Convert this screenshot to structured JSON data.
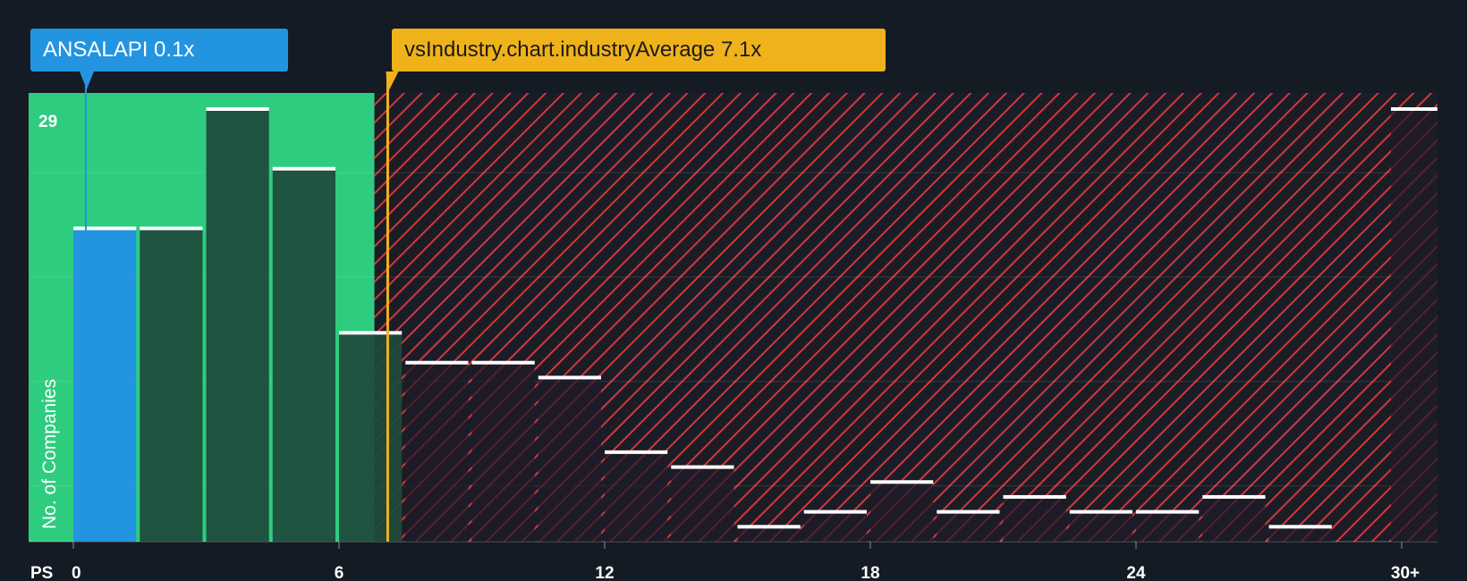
{
  "colors": {
    "background": "#151b24",
    "fair_zone": "#2ecc7f",
    "fair_bar": "#1e4a3b",
    "company_bar": "#2394e0",
    "expensive_hatch": "#d4363e",
    "expensive_bar": "#2b252f",
    "industry_marker": "#f0b21b",
    "bar_cap": "#ffffff",
    "axis_text": "#ffffff"
  },
  "company_label": {
    "ticker": "ANSALAPI",
    "value": "0.1x",
    "text": "ANSALAPI 0.1x"
  },
  "industry_label": {
    "text": "vsIndustry.chart.industryAverage 7.1x",
    "value": "7.1x"
  },
  "chart_data": {
    "type": "bar",
    "title": "",
    "xlabel": "PS",
    "ylabel": "No. of Companies",
    "xlim": [
      0,
      30
    ],
    "ylim": [
      0,
      30
    ],
    "bin_width": 1.5,
    "x_ticks": [
      {
        "value": 0,
        "label": "0"
      },
      {
        "value": 6,
        "label": "6"
      },
      {
        "value": 12,
        "label": "12"
      },
      {
        "value": 18,
        "label": "18"
      },
      {
        "value": 24,
        "label": "24"
      },
      {
        "value": 30,
        "label": "30+"
      }
    ],
    "y_ticks": [
      {
        "value": 29,
        "label": "29"
      }
    ],
    "company_value": 0.1,
    "industry_average": 7.1,
    "fair_zone_end": 6.8,
    "bins": [
      {
        "x": 0.0,
        "value": 21,
        "zone": "company"
      },
      {
        "x": 1.5,
        "value": 21,
        "zone": "fair"
      },
      {
        "x": 3.0,
        "value": 29,
        "zone": "fair"
      },
      {
        "x": 4.5,
        "value": 25,
        "zone": "fair"
      },
      {
        "x": 6.0,
        "value": 14,
        "zone": "fair"
      },
      {
        "x": 7.5,
        "value": 12,
        "zone": "expensive"
      },
      {
        "x": 9.0,
        "value": 12,
        "zone": "expensive"
      },
      {
        "x": 10.5,
        "value": 11,
        "zone": "expensive"
      },
      {
        "x": 12.0,
        "value": 6,
        "zone": "expensive"
      },
      {
        "x": 13.5,
        "value": 5,
        "zone": "expensive"
      },
      {
        "x": 15.0,
        "value": 1,
        "zone": "expensive"
      },
      {
        "x": 16.5,
        "value": 2,
        "zone": "expensive"
      },
      {
        "x": 18.0,
        "value": 4,
        "zone": "expensive"
      },
      {
        "x": 19.5,
        "value": 2,
        "zone": "expensive"
      },
      {
        "x": 21.0,
        "value": 3,
        "zone": "expensive"
      },
      {
        "x": 22.5,
        "value": 2,
        "zone": "expensive"
      },
      {
        "x": 24.0,
        "value": 2,
        "zone": "expensive"
      },
      {
        "x": 25.5,
        "value": 3,
        "zone": "expensive"
      },
      {
        "x": 27.0,
        "value": 1,
        "zone": "expensive"
      },
      {
        "x": 30.0,
        "value": 29,
        "zone": "expensive"
      }
    ]
  }
}
